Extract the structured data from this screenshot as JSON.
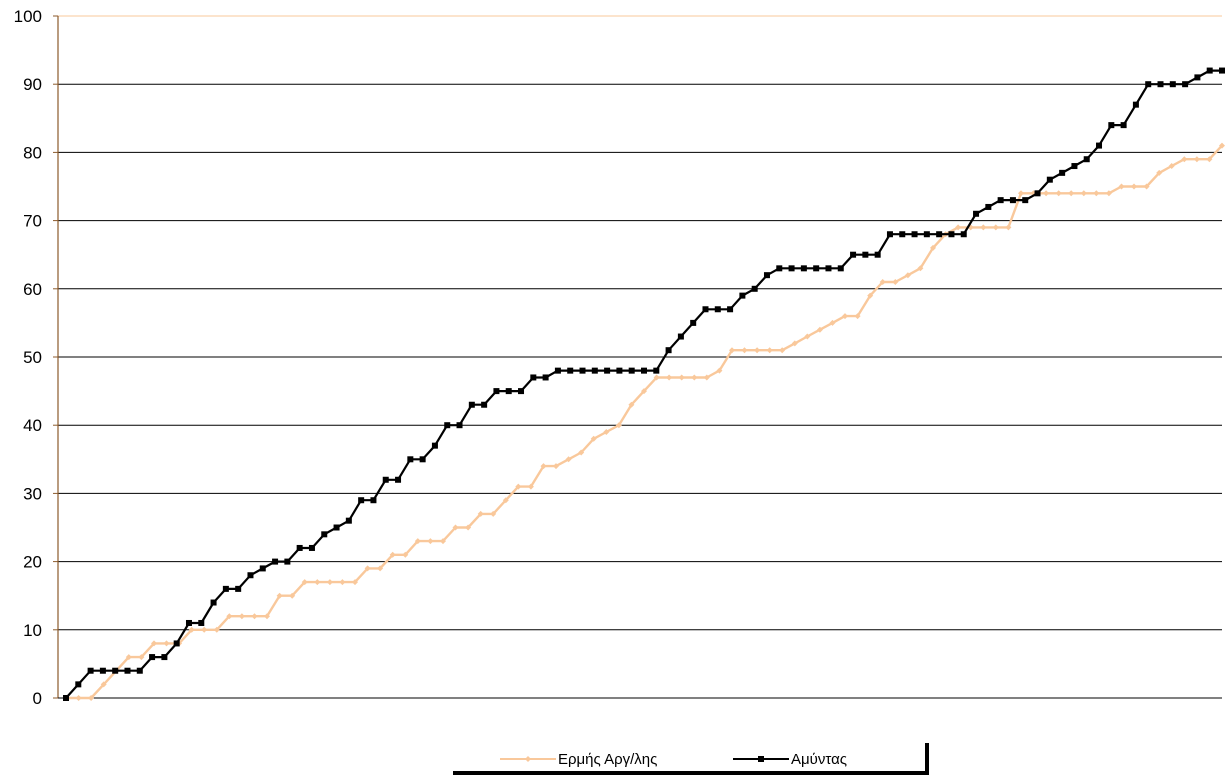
{
  "chart_data": {
    "type": "line",
    "title": "",
    "xlabel": "",
    "ylabel": "",
    "ylim": [
      0,
      100
    ],
    "yticks": [
      0,
      10,
      20,
      30,
      40,
      50,
      60,
      70,
      80,
      90,
      100
    ],
    "grid": true,
    "legend_position": "bottom",
    "series": [
      {
        "name": "Ερμής Αργ/λης",
        "color": "#f9c89b",
        "marker": "diamond",
        "values": [
          0,
          0,
          0,
          2,
          4,
          6,
          6,
          8,
          8,
          8,
          10,
          10,
          10,
          12,
          12,
          12,
          12,
          15,
          15,
          17,
          17,
          17,
          17,
          17,
          19,
          19,
          21,
          21,
          23,
          23,
          23,
          25,
          25,
          27,
          27,
          29,
          31,
          31,
          34,
          34,
          35,
          36,
          38,
          39,
          40,
          43,
          45,
          47,
          47,
          47,
          47,
          47,
          48,
          51,
          51,
          51,
          51,
          51,
          52,
          53,
          54,
          55,
          56,
          56,
          59,
          61,
          61,
          62,
          63,
          66,
          68,
          69,
          69,
          69,
          69,
          69,
          74,
          74,
          74,
          74,
          74,
          74,
          74,
          74,
          75,
          75,
          75,
          77,
          78,
          79,
          79,
          79,
          81
        ]
      },
      {
        "name": "Αμύντας",
        "color": "#000000",
        "marker": "square",
        "values": [
          0,
          2,
          4,
          4,
          4,
          4,
          4,
          6,
          6,
          8,
          11,
          11,
          14,
          16,
          16,
          18,
          19,
          20,
          20,
          22,
          22,
          24,
          25,
          26,
          29,
          29,
          32,
          32,
          35,
          35,
          37,
          40,
          40,
          43,
          43,
          45,
          45,
          45,
          47,
          47,
          48,
          48,
          48,
          48,
          48,
          48,
          48,
          48,
          48,
          51,
          53,
          55,
          57,
          57,
          57,
          59,
          60,
          62,
          63,
          63,
          63,
          63,
          63,
          63,
          65,
          65,
          65,
          68,
          68,
          68,
          68,
          68,
          68,
          68,
          71,
          72,
          73,
          73,
          73,
          74,
          76,
          77,
          78,
          79,
          81,
          84,
          84,
          87,
          90,
          90,
          90,
          90,
          91,
          92,
          92
        ]
      }
    ]
  }
}
